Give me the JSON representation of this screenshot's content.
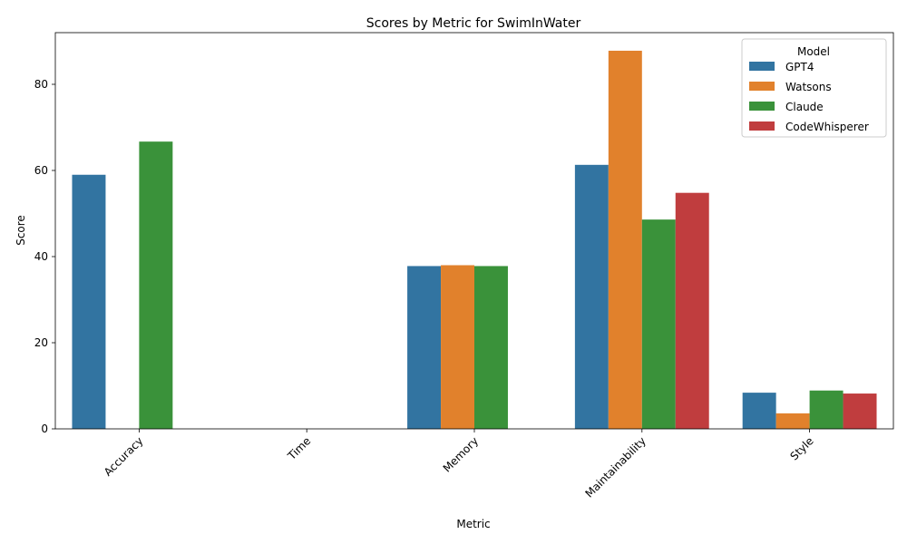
{
  "chart_data": {
    "type": "bar",
    "title": "Scores by Metric for SwimInWater",
    "xlabel": "Metric",
    "ylabel": "Score",
    "categories": [
      "Accuracy",
      "Time",
      "Memory",
      "Maintainability",
      "Style"
    ],
    "ylim": [
      0,
      92
    ],
    "yticks": [
      0,
      20,
      40,
      60,
      80
    ],
    "legend_title": "Model",
    "legend_position": "top-right",
    "grid": false,
    "series": [
      {
        "name": "GPT4",
        "color": "#3274a1",
        "values": [
          59.0,
          0,
          37.8,
          61.3,
          8.4
        ]
      },
      {
        "name": "Watsons",
        "color": "#e1812c",
        "values": [
          0,
          0,
          38.0,
          87.8,
          3.6
        ]
      },
      {
        "name": "Claude",
        "color": "#3a923a",
        "values": [
          66.7,
          0,
          37.8,
          48.6,
          8.9
        ]
      },
      {
        "name": "CodeWhisperer",
        "color": "#c03d3e",
        "values": [
          0,
          0,
          0,
          54.8,
          8.2
        ]
      }
    ]
  }
}
